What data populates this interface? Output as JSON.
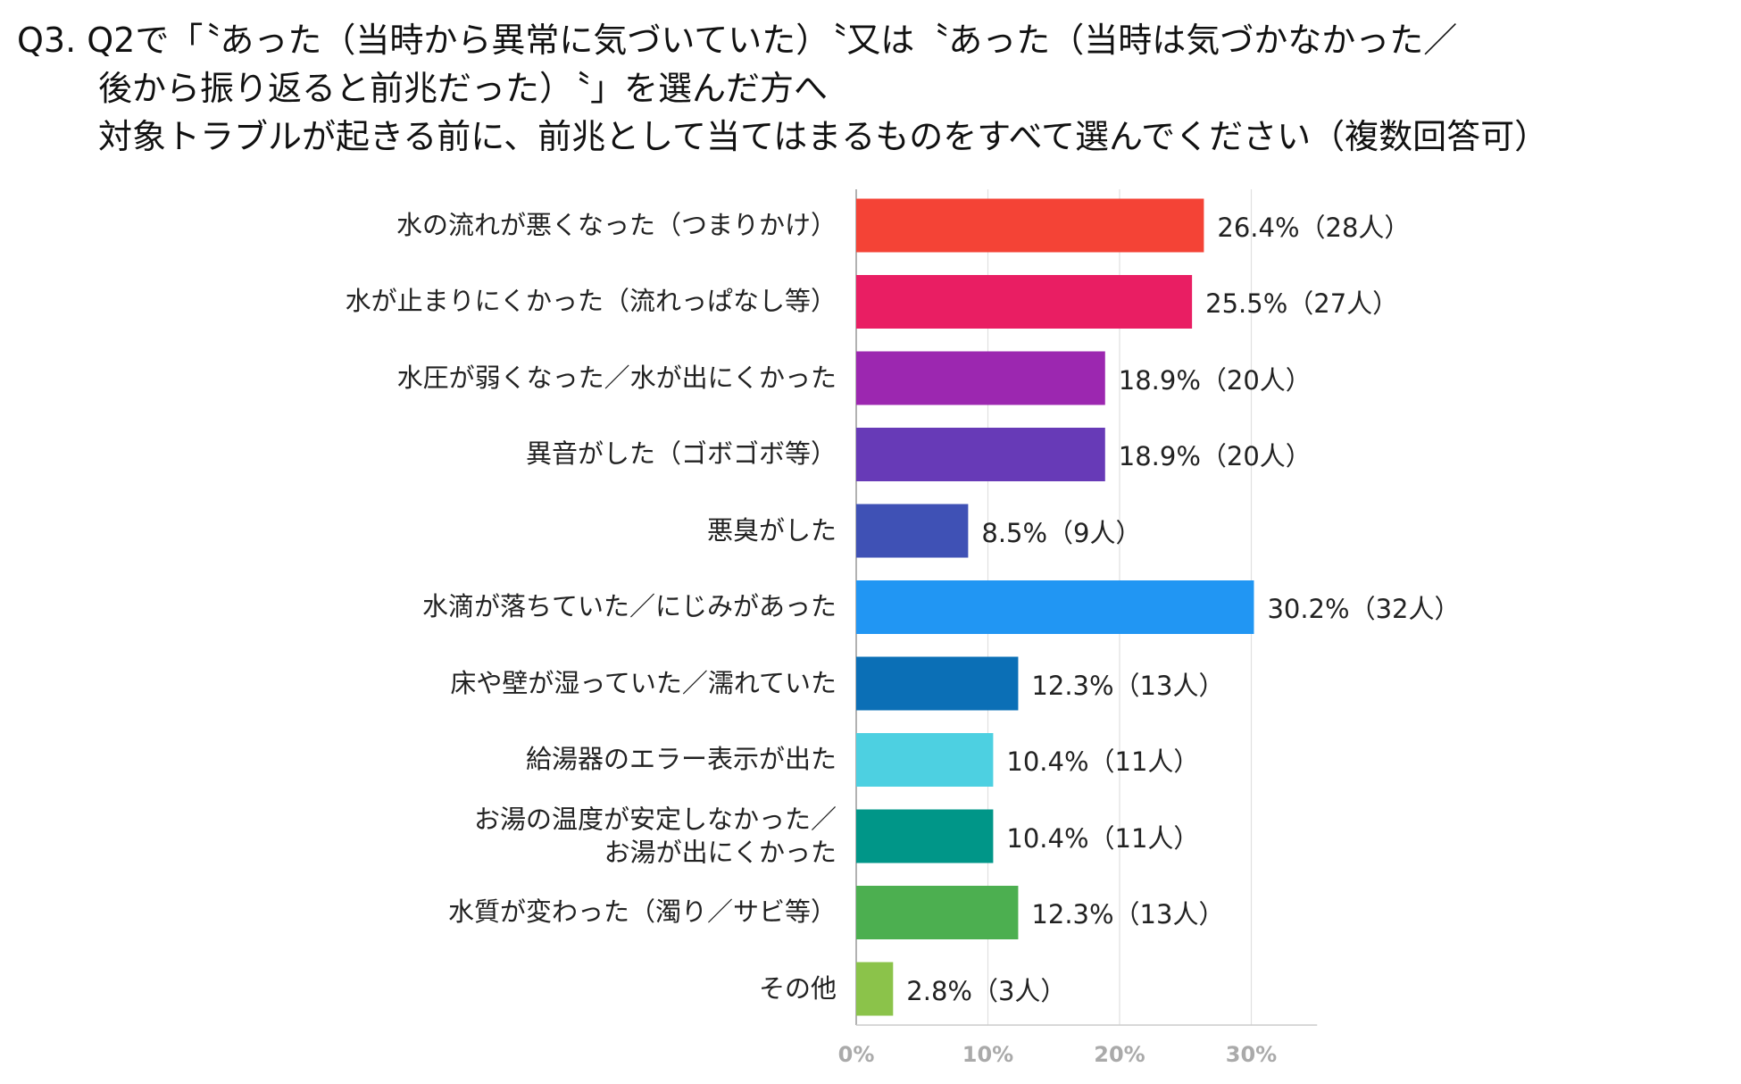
{
  "chart_data": {
    "type": "bar",
    "orientation": "horizontal",
    "title": [
      "Q3. Q2で「〝あった（当時から異常に気づいていた）〝又は〝あった（当時は気づかなかった／",
      "後から振り返ると前兆だった）〝」を選んだ方へ",
      "対象トラブルが起きる前に、前兆として当てはまるものをすべて選んでください（複数回答可）"
    ],
    "categories": [
      "水の流れが悪くなった（つまりかけ）",
      "水が止まりにくかった（流れっぱなし等）",
      "水圧が弱くなった／水が出にくかった",
      "異音がした（ゴボゴボ等）",
      "悪臭がした",
      "水滴が落ちていた／にじみがあった",
      "床や壁が湿っていた／濡れていた",
      "給湯器のエラー表示が出た",
      "お湯の温度が安定しなかった／\nお湯が出にくかった",
      "水質が変わった（濁り／サビ等）",
      "その他"
    ],
    "values": [
      26.4,
      25.5,
      18.9,
      18.9,
      8.5,
      30.2,
      12.3,
      10.4,
      10.4,
      12.3,
      2.8
    ],
    "value_labels": [
      "26.4%（28人）",
      "25.5%（27人）",
      "18.9%（20人）",
      "18.9%（20人）",
      "8.5%（9人）",
      "30.2%（32人）",
      "12.3%（13人）",
      "10.4%（11人）",
      "10.4%（11人）",
      "12.3%（13人）",
      "2.8%（3人）"
    ],
    "colors": [
      "#f44336",
      "#e91e63",
      "#9c27b0",
      "#673ab7",
      "#3f51b5",
      "#2196f3",
      "#0b6fb6",
      "#4dd0e1",
      "#009688",
      "#4caf50",
      "#8bc34a"
    ],
    "xlim": [
      0,
      35
    ],
    "xticks": [
      {
        "value": 0,
        "label": "0%"
      },
      {
        "value": 10,
        "label": "10%"
      },
      {
        "value": 20,
        "label": "20%"
      },
      {
        "value": 30,
        "label": "30%"
      }
    ],
    "grid": true
  }
}
